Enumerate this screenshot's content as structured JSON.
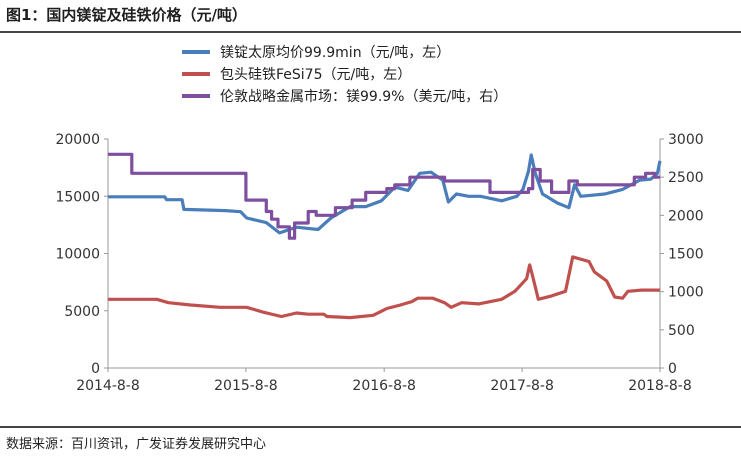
{
  "header": {
    "title": "图1：国内镁锭及硅铁价格（元/吨）"
  },
  "footer": {
    "source": "数据来源：百川资讯，广发证券发展研究中心"
  },
  "chart_data": {
    "type": "line",
    "x_ticks": [
      "2014-8-8",
      "2015-8-8",
      "2016-8-8",
      "2017-8-8",
      "2018-8-8"
    ],
    "x_range": [
      "2014-08-08",
      "2018-08-08"
    ],
    "y_left": {
      "range": [
        0,
        20000
      ],
      "ticks": [
        "0",
        "5000",
        "10000",
        "15000",
        "20000"
      ]
    },
    "y_right": {
      "range": [
        0,
        3000
      ],
      "ticks": [
        "0",
        "500",
        "1000",
        "1500",
        "2000",
        "2500",
        "3000"
      ]
    },
    "grid": false,
    "legend_position": "top",
    "series": [
      {
        "name": "镁锭太原均价99.9min（元/吨，左）",
        "axis": "left",
        "color": "#4a7ebb",
        "points": [
          [
            "2014-08-08",
            14950
          ],
          [
            "2015-01-05",
            14950
          ],
          [
            "2015-01-10",
            14700
          ],
          [
            "2015-02-20",
            14700
          ],
          [
            "2015-02-25",
            13850
          ],
          [
            "2015-06-15",
            13750
          ],
          [
            "2015-07-25",
            13650
          ],
          [
            "2015-08-10",
            13100
          ],
          [
            "2015-10-01",
            12700
          ],
          [
            "2015-11-05",
            11800
          ],
          [
            "2015-12-20",
            12300
          ],
          [
            "2016-02-15",
            12100
          ],
          [
            "2016-03-20",
            13100
          ],
          [
            "2016-05-10",
            14100
          ],
          [
            "2016-06-20",
            14100
          ],
          [
            "2016-08-01",
            14600
          ],
          [
            "2016-09-05",
            15800
          ],
          [
            "2016-10-10",
            15500
          ],
          [
            "2016-11-10",
            17000
          ],
          [
            "2016-12-10",
            17100
          ],
          [
            "2017-01-10",
            16400
          ],
          [
            "2017-01-25",
            14500
          ],
          [
            "2017-02-15",
            15200
          ],
          [
            "2017-03-20",
            15000
          ],
          [
            "2017-04-20",
            15000
          ],
          [
            "2017-06-15",
            14600
          ],
          [
            "2017-07-25",
            15000
          ],
          [
            "2017-08-10",
            15600
          ],
          [
            "2017-08-25",
            17200
          ],
          [
            "2017-09-01",
            18600
          ],
          [
            "2017-09-12",
            17000
          ],
          [
            "2017-10-01",
            15200
          ],
          [
            "2017-11-10",
            14400
          ],
          [
            "2017-12-10",
            14000
          ],
          [
            "2017-12-25",
            16000
          ],
          [
            "2018-01-10",
            15000
          ],
          [
            "2018-03-15",
            15200
          ],
          [
            "2018-05-01",
            15600
          ],
          [
            "2018-06-15",
            16400
          ],
          [
            "2018-07-15",
            16500
          ],
          [
            "2018-08-01",
            17000
          ],
          [
            "2018-08-08",
            18100
          ]
        ]
      },
      {
        "name": "包头硅铁FeSi75（元/吨，左）",
        "axis": "left",
        "color": "#c0504d",
        "points": [
          [
            "2014-08-08",
            6000
          ],
          [
            "2014-12-15",
            6000
          ],
          [
            "2015-01-15",
            5700
          ],
          [
            "2015-03-15",
            5500
          ],
          [
            "2015-06-01",
            5300
          ],
          [
            "2015-08-10",
            5300
          ],
          [
            "2015-09-20",
            4900
          ],
          [
            "2015-11-10",
            4500
          ],
          [
            "2015-12-20",
            4800
          ],
          [
            "2016-01-20",
            4700
          ],
          [
            "2016-03-01",
            4700
          ],
          [
            "2016-03-10",
            4500
          ],
          [
            "2016-05-10",
            4400
          ],
          [
            "2016-07-10",
            4600
          ],
          [
            "2016-08-15",
            5200
          ],
          [
            "2016-09-20",
            5500
          ],
          [
            "2016-10-20",
            5800
          ],
          [
            "2016-11-05",
            6100
          ],
          [
            "2016-12-15",
            6100
          ],
          [
            "2017-01-15",
            5700
          ],
          [
            "2017-02-01",
            5300
          ],
          [
            "2017-03-01",
            5700
          ],
          [
            "2017-04-15",
            5600
          ],
          [
            "2017-06-15",
            6000
          ],
          [
            "2017-07-20",
            6700
          ],
          [
            "2017-08-20",
            7800
          ],
          [
            "2017-08-28",
            9000
          ],
          [
            "2017-09-05",
            8000
          ],
          [
            "2017-09-20",
            6000
          ],
          [
            "2017-10-25",
            6300
          ],
          [
            "2017-12-01",
            6700
          ],
          [
            "2017-12-20",
            9700
          ],
          [
            "2018-02-01",
            9300
          ],
          [
            "2018-02-15",
            8400
          ],
          [
            "2018-03-20",
            7600
          ],
          [
            "2018-04-10",
            6200
          ],
          [
            "2018-05-01",
            6100
          ],
          [
            "2018-05-15",
            6700
          ],
          [
            "2018-06-20",
            6800
          ],
          [
            "2018-07-20",
            6800
          ],
          [
            "2018-08-08",
            6800
          ]
        ]
      },
      {
        "name": "伦敦战略金属市场：镁99.9%（美元/吨，右）",
        "axis": "right",
        "color": "#7f4f9f",
        "step": true,
        "points": [
          [
            "2014-08-08",
            2800
          ],
          [
            "2014-10-10",
            2550
          ],
          [
            "2015-08-08",
            2200
          ],
          [
            "2015-10-01",
            2050
          ],
          [
            "2015-10-15",
            1950
          ],
          [
            "2015-11-01",
            1850
          ],
          [
            "2015-12-01",
            1700
          ],
          [
            "2015-12-15",
            1900
          ],
          [
            "2016-01-20",
            2050
          ],
          [
            "2016-02-10",
            2000
          ],
          [
            "2016-04-01",
            2100
          ],
          [
            "2016-05-15",
            2200
          ],
          [
            "2016-06-20",
            2300
          ],
          [
            "2016-08-15",
            2350
          ],
          [
            "2016-09-05",
            2400
          ],
          [
            "2016-10-15",
            2500
          ],
          [
            "2017-01-15",
            2450
          ],
          [
            "2017-04-01",
            2450
          ],
          [
            "2017-05-15",
            2300
          ],
          [
            "2017-08-25",
            2350
          ],
          [
            "2017-09-05",
            2600
          ],
          [
            "2017-09-25",
            2450
          ],
          [
            "2017-10-25",
            2300
          ],
          [
            "2017-12-10",
            2450
          ],
          [
            "2018-01-01",
            2400
          ],
          [
            "2018-04-01",
            2400
          ],
          [
            "2018-05-10",
            2400
          ],
          [
            "2018-06-01",
            2500
          ],
          [
            "2018-07-01",
            2550
          ],
          [
            "2018-07-25",
            2500
          ],
          [
            "2018-08-08",
            2500
          ]
        ]
      }
    ]
  }
}
